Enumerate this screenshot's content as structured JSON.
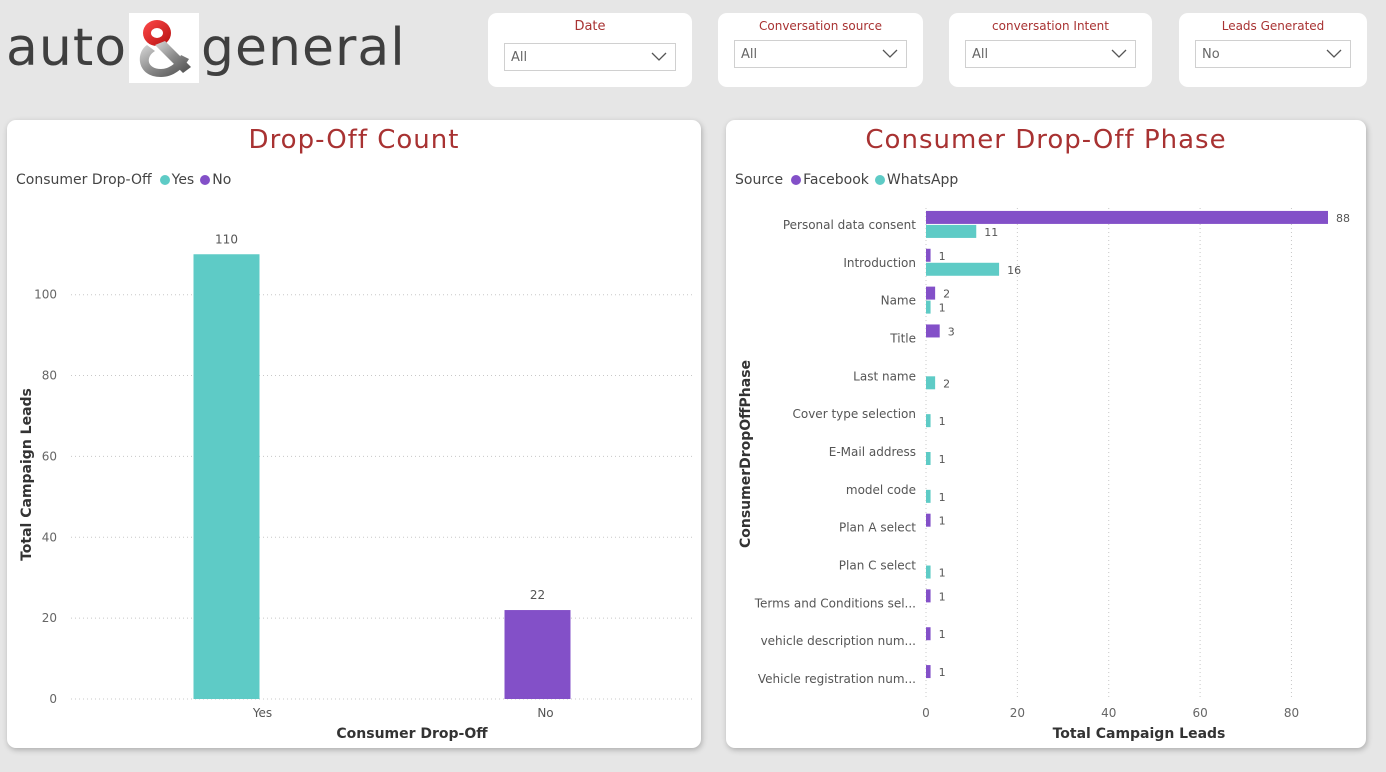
{
  "logo": {
    "left_text": "auto",
    "right_text": "general"
  },
  "slicers": [
    {
      "title": "Date",
      "value": "All"
    },
    {
      "title": "Conversation source",
      "value": "All"
    },
    {
      "title": "conversation Intent",
      "value": "All"
    },
    {
      "title": "Leads Generated",
      "value": "No"
    }
  ],
  "left_panel": {
    "title": "Drop-Off Count",
    "legend_title": "Consumer Drop-Off",
    "legend_items": [
      {
        "name": "Yes",
        "color": "#5ecbc6"
      },
      {
        "name": "No",
        "color": "#8350c8"
      }
    ]
  },
  "right_panel": {
    "title": "Consumer Drop-Off Phase",
    "legend_title": "Source",
    "legend_items": [
      {
        "name": "Facebook",
        "color": "#8350c8"
      },
      {
        "name": "WhatsApp",
        "color": "#5ecbc6"
      }
    ]
  },
  "chart_data": [
    {
      "type": "bar",
      "orientation": "vertical",
      "categories": [
        "Yes",
        "No"
      ],
      "values": [
        110,
        22
      ],
      "colors": [
        "#5ecbc6",
        "#8350c8"
      ],
      "title": "Drop-Off Count",
      "xlabel": "Consumer Drop-Off",
      "ylabel": "Total Campaign Leads",
      "ylim": [
        0,
        116
      ],
      "yticks": [
        0,
        20,
        40,
        60,
        80,
        100
      ],
      "grid": true
    },
    {
      "type": "bar",
      "orientation": "horizontal",
      "categories": [
        "Personal data consent",
        "Introduction",
        "Name",
        "Title",
        "Last name",
        "Cover type selection",
        "E-Mail address",
        "model code",
        "Plan A select",
        "Plan C select",
        "Terms and Conditions sel...",
        "vehicle description num...",
        "Vehicle registration num..."
      ],
      "series": [
        {
          "name": "Facebook",
          "color": "#8350c8",
          "values": [
            88,
            1,
            2,
            3,
            null,
            null,
            null,
            null,
            1,
            null,
            1,
            1,
            1
          ]
        },
        {
          "name": "WhatsApp",
          "color": "#5ecbc6",
          "values": [
            11,
            16,
            1,
            null,
            2,
            1,
            1,
            1,
            null,
            1,
            null,
            null,
            null
          ]
        }
      ],
      "title": "Consumer Drop-Off Phase",
      "xlabel": "Total Campaign Leads",
      "ylabel": "ConsumerDropOffPhase",
      "xlim": [
        0,
        88
      ],
      "xticks": [
        0,
        20,
        40,
        60,
        80
      ],
      "grid": true
    }
  ]
}
